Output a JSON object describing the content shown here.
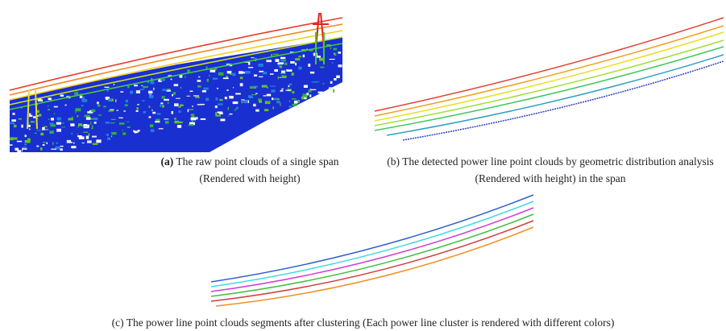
{
  "panels": [
    {
      "label": "(a)",
      "caption": "The raw point clouds of a single span (Rendered with height)"
    },
    {
      "label": "(b)",
      "caption": "The detected power line point clouds by geometric distribution analysis (Rendered with height) in the span"
    },
    {
      "label": "(c)",
      "caption": "The power line point clouds segments after clustering (Each power line cluster is rendered with different colors)"
    }
  ]
}
